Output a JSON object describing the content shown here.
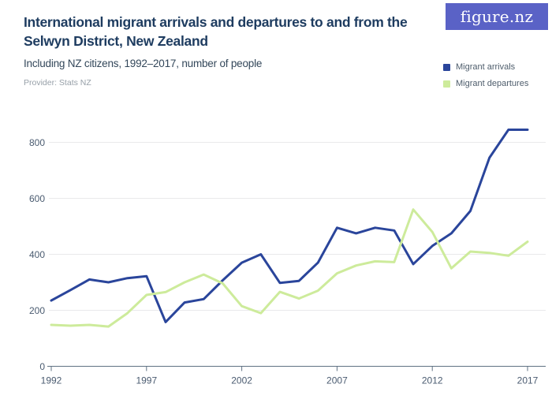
{
  "header": {
    "title": "International migrant arrivals and departures to and from the Selwyn District, New Zealand",
    "subtitle": "Including NZ citizens, 1992–2017, number of people",
    "provider": "Provider: Stats NZ"
  },
  "logo": {
    "text": "figure.nz"
  },
  "legend": [
    {
      "label": "Migrant arrivals",
      "color": "#2A459B"
    },
    {
      "label": "Migrant departures",
      "color": "#CDEB9B"
    }
  ],
  "chart_data": {
    "type": "line",
    "title": "International migrant arrivals and departures to and from the Selwyn District, New Zealand",
    "subtitle": "Including NZ citizens, 1992–2017, number of people",
    "x": [
      1992,
      1993,
      1994,
      1995,
      1996,
      1997,
      1998,
      1999,
      2000,
      2001,
      2002,
      2003,
      2004,
      2005,
      2006,
      2007,
      2008,
      2009,
      2010,
      2011,
      2012,
      2013,
      2014,
      2015,
      2016,
      2017
    ],
    "series": [
      {
        "name": "Migrant arrivals",
        "color": "#2A459B",
        "values": [
          235,
          272,
          310,
          300,
          315,
          322,
          158,
          228,
          240,
          307,
          370,
          400,
          298,
          305,
          370,
          495,
          475,
          495,
          485,
          365,
          430,
          475,
          555,
          745,
          845,
          845
        ]
      },
      {
        "name": "Migrant departures",
        "color": "#CDEB9B",
        "values": [
          148,
          145,
          148,
          142,
          190,
          255,
          265,
          300,
          328,
          296,
          215,
          190,
          266,
          242,
          270,
          332,
          360,
          375,
          372,
          560,
          480,
          350,
          410,
          405,
          395,
          445
        ]
      }
    ],
    "xlabel": "",
    "ylabel": "",
    "xticks": [
      1992,
      1997,
      2002,
      2007,
      2012,
      2017
    ],
    "yticks": [
      0,
      200,
      400,
      600,
      800
    ],
    "ylim": [
      0,
      860
    ],
    "grid": "horizontal",
    "legend_position": "top-right",
    "gridline_color": "#E9E9EB",
    "axis_color": "#5F7183",
    "tick_label_color": "#4A5B70"
  }
}
